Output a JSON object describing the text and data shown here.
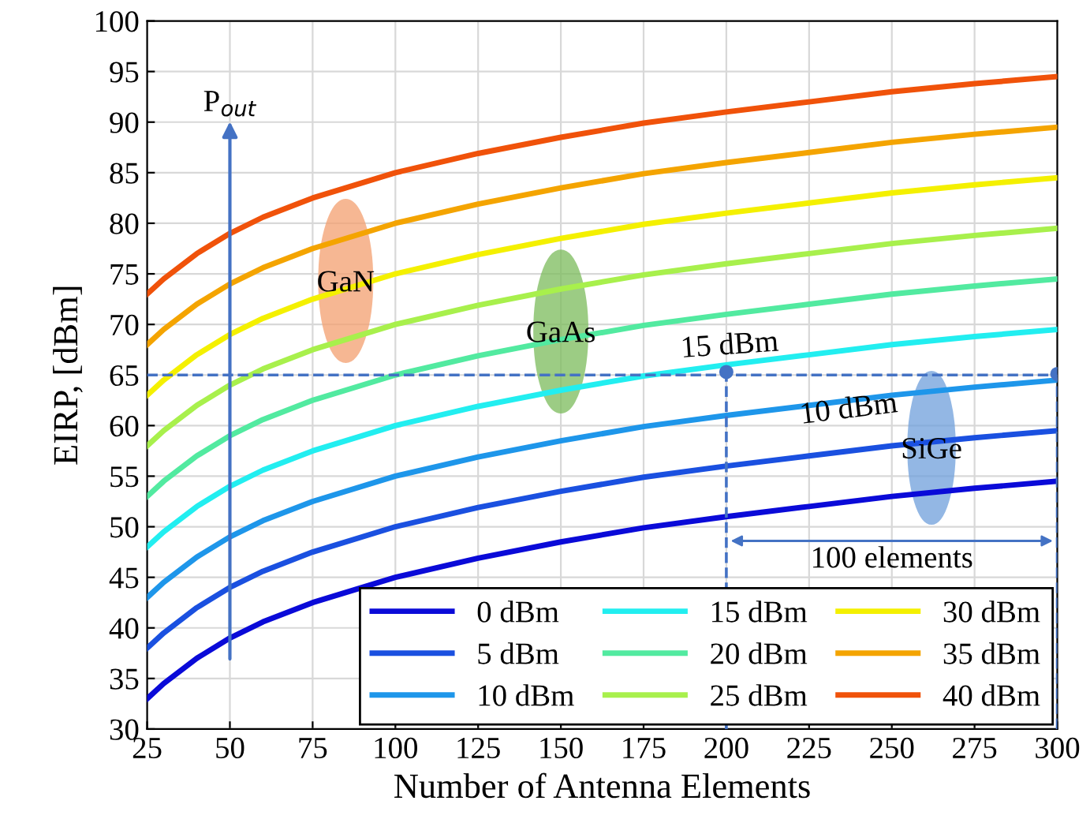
{
  "chart_data": {
    "type": "line",
    "xlabel": "Number of Antenna Elements",
    "ylabel": "EIRP, [dBm]",
    "x": [
      25,
      30,
      40,
      50,
      60,
      75,
      100,
      125,
      150,
      175,
      200,
      225,
      250,
      275,
      300
    ],
    "xlim": [
      25,
      300
    ],
    "xticks": [
      25,
      50,
      75,
      100,
      125,
      150,
      175,
      200,
      225,
      250,
      275,
      300
    ],
    "ylim": [
      30,
      100
    ],
    "yticks": [
      30,
      35,
      40,
      45,
      50,
      55,
      60,
      65,
      70,
      75,
      80,
      85,
      90,
      95,
      100
    ],
    "grid": true,
    "legend": "bottom right",
    "marker": "none",
    "line_style": "solid",
    "series": [
      {
        "name": "0 dBm",
        "color": "#0a0ad8",
        "values": [
          33.0,
          34.5,
          37.0,
          39.0,
          40.6,
          42.5,
          45.0,
          46.9,
          48.5,
          49.9,
          51.0,
          52.0,
          53.0,
          53.8,
          54.5
        ]
      },
      {
        "name": "5 dBm",
        "color": "#1a50e0",
        "values": [
          38.0,
          39.5,
          42.0,
          44.0,
          45.6,
          47.5,
          50.0,
          51.9,
          53.5,
          54.9,
          56.0,
          57.0,
          58.0,
          58.8,
          59.5
        ]
      },
      {
        "name": "10 dBm",
        "color": "#1e96ea",
        "values": [
          43.0,
          44.5,
          47.0,
          49.0,
          50.6,
          52.5,
          55.0,
          56.9,
          58.5,
          59.9,
          61.0,
          62.0,
          63.0,
          63.8,
          64.5
        ]
      },
      {
        "name": "15 dBm",
        "color": "#22eef0",
        "values": [
          48.0,
          49.5,
          52.0,
          54.0,
          55.6,
          57.5,
          60.0,
          61.9,
          63.5,
          64.9,
          66.0,
          67.0,
          68.0,
          68.8,
          69.5
        ]
      },
      {
        "name": "20 dBm",
        "color": "#52eaa0",
        "values": [
          53.0,
          54.5,
          57.0,
          59.0,
          60.6,
          62.5,
          65.0,
          66.9,
          68.5,
          69.9,
          71.0,
          72.0,
          73.0,
          73.8,
          74.5
        ]
      },
      {
        "name": "25 dBm",
        "color": "#a8f04c",
        "values": [
          58.0,
          59.5,
          62.0,
          64.0,
          65.6,
          67.5,
          70.0,
          71.9,
          73.5,
          74.9,
          76.0,
          77.0,
          78.0,
          78.8,
          79.5
        ]
      },
      {
        "name": "30 dBm",
        "color": "#f4f000",
        "values": [
          63.0,
          64.5,
          67.0,
          69.0,
          70.6,
          72.5,
          75.0,
          76.9,
          78.5,
          79.9,
          81.0,
          82.0,
          83.0,
          83.8,
          84.5
        ]
      },
      {
        "name": "35 dBm",
        "color": "#f4a400",
        "values": [
          68.0,
          69.5,
          72.0,
          74.0,
          75.6,
          77.5,
          80.0,
          81.9,
          83.5,
          84.9,
          86.0,
          87.0,
          88.0,
          88.8,
          89.5
        ]
      },
      {
        "name": "40 dBm",
        "color": "#f0520a",
        "values": [
          73.0,
          74.5,
          77.0,
          79.0,
          80.6,
          82.5,
          85.0,
          86.9,
          88.5,
          89.9,
          91.0,
          92.0,
          93.0,
          93.8,
          94.5
        ]
      },
      {
        "type": "line",
        "line_style": "dashed",
        "color": "#4472c4",
        "x": [
          25,
          300
        ],
        "values": [
          65,
          65
        ]
      },
      {
        "type": "line",
        "line_style": "dashed",
        "color": "#4472c4",
        "x": [
          200,
          200
        ],
        "values": [
          30,
          65
        ]
      },
      {
        "type": "line",
        "line_style": "dashed",
        "color": "#4472c4",
        "x": [
          300,
          300
        ],
        "values": [
          30,
          65
        ]
      },
      {
        "type": "scatter",
        "marker": "circle",
        "color": "#4472c4",
        "x": [
          200,
          300
        ],
        "values": [
          65.3,
          65.1
        ]
      }
    ],
    "annotations": [
      "P$_{out}$",
      {
        "text": "GaN",
        "x": 85,
        "y": 74
      },
      {
        "text": "GaAs",
        "x": 150,
        "y": 69
      },
      {
        "text": "SiGe",
        "x": 262,
        "y": 57.5
      },
      "15 dBm",
      {
        "text": "10 dBm",
        "x": 237,
        "y": 61.5
      },
      "100 elements"
    ]
  }
}
